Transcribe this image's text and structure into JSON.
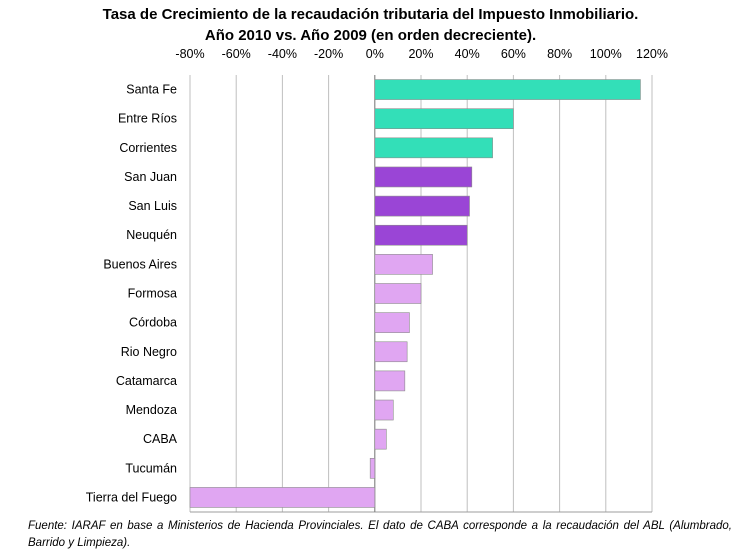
{
  "chart_data": {
    "type": "bar",
    "orientation": "horizontal",
    "title": "Tasa de Crecimiento de la recaudación tributaria del Impuesto Inmobiliario.",
    "subtitle": "Año 2010 vs. Año 2009 (en orden decreciente).",
    "categories": [
      "Santa Fe",
      "Entre Ríos",
      "Corrientes",
      "San Juan",
      "San Luis",
      "Neuquén",
      "Buenos Aires",
      "Formosa",
      "Córdoba",
      "Rio Negro",
      "Catamarca",
      "Mendoza",
      "CABA",
      "Tucumán",
      "Tierra del Fuego"
    ],
    "values": [
      115,
      60,
      51,
      42,
      41,
      40,
      25,
      20,
      15,
      14,
      13,
      8,
      5,
      -2,
      -80
    ],
    "bar_colors": [
      "#33dfb8",
      "#33dfb8",
      "#33dfb8",
      "#9a45d6",
      "#9a45d6",
      "#9a45d6",
      "#e0a6f2",
      "#e0a6f2",
      "#e0a6f2",
      "#e0a6f2",
      "#e0a6f2",
      "#e0a6f2",
      "#e0a6f2",
      "#e0a6f2",
      "#e0a6f2"
    ],
    "xlim": [
      -80,
      120
    ],
    "xticks": [
      "-80%",
      "-60%",
      "-40%",
      "-20%",
      "0%",
      "20%",
      "40%",
      "60%",
      "80%",
      "100%",
      "120%"
    ],
    "xtick_values": [
      -80,
      -60,
      -40,
      -20,
      0,
      20,
      40,
      60,
      80,
      100,
      120
    ],
    "axis_position": "top",
    "grid": true,
    "legend": "none"
  },
  "footnote": "Fuente: IARAF en base a Ministerios de Hacienda Provinciales. El dato de CABA corresponde a la recaudación del ABL (Alumbrado, Barrido y Limpieza)."
}
